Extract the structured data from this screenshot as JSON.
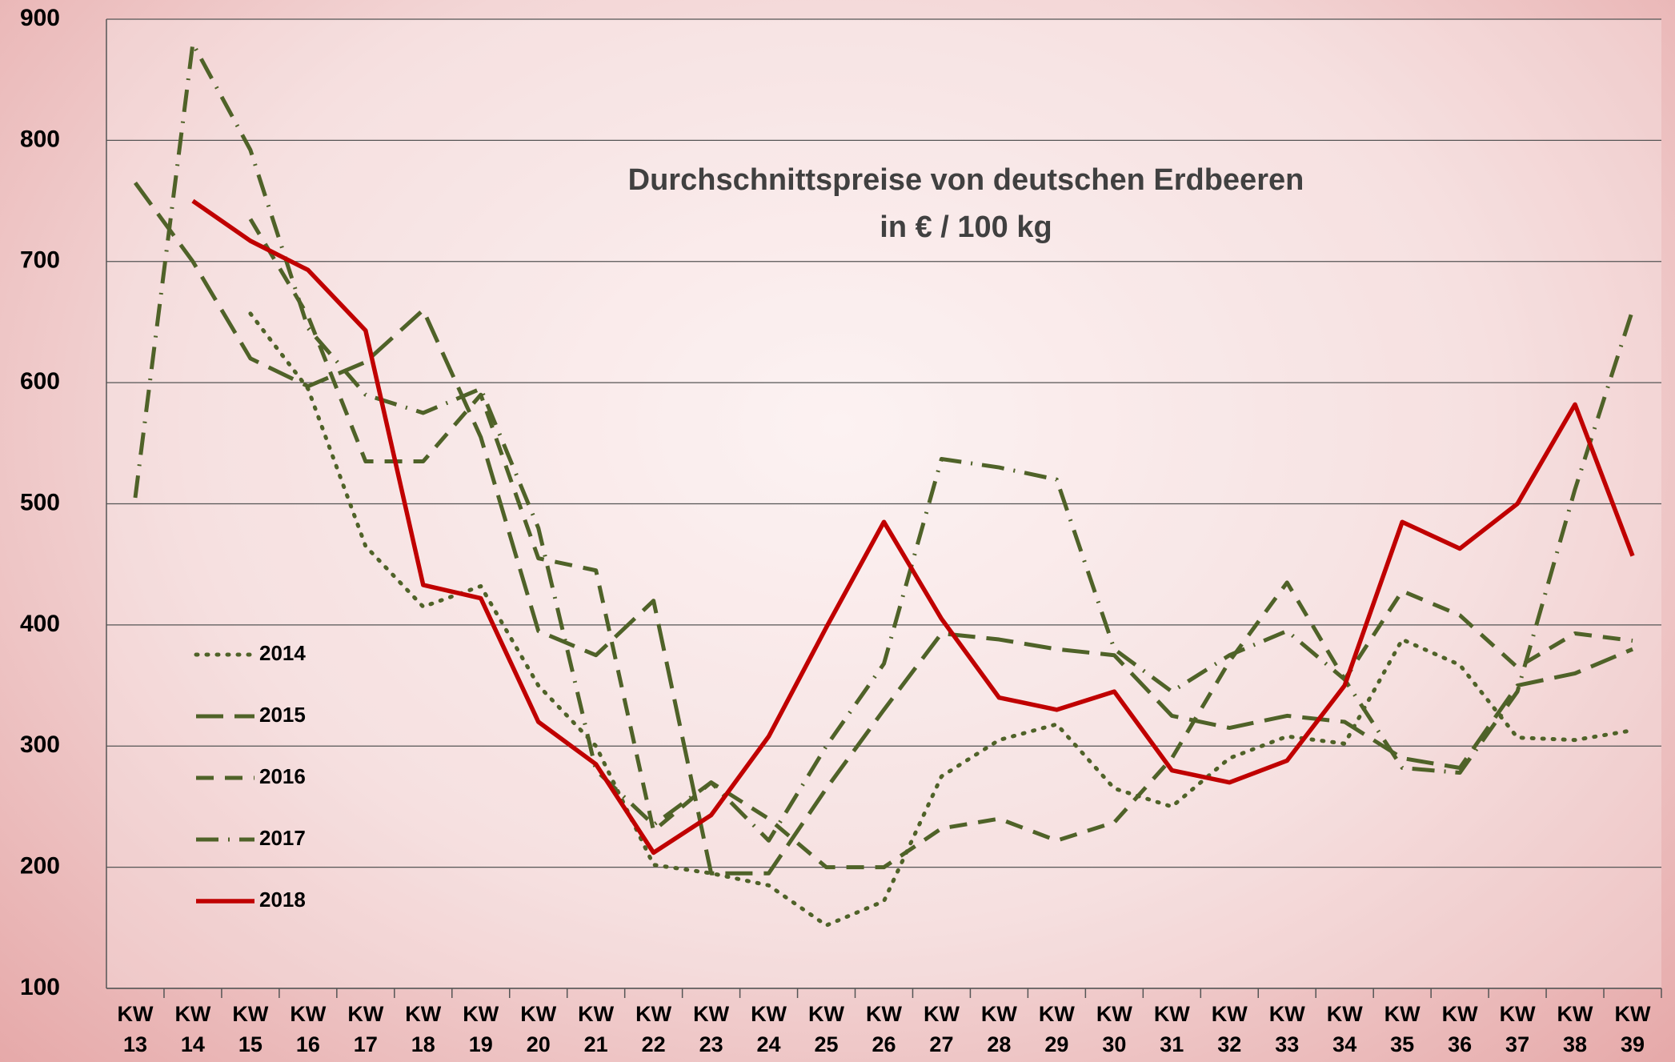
{
  "chart_data": {
    "type": "line",
    "title": "Durchschnittspreise von deutschen Erdbeeren",
    "subtitle": "in € / 100 kg",
    "categories": [
      "KW 13",
      "KW 14",
      "KW 15",
      "KW 16",
      "KW 17",
      "KW 18",
      "KW 19",
      "KW 20",
      "KW 21",
      "KW 22",
      "KW 23",
      "KW 24",
      "KW 25",
      "KW 26",
      "KW 27",
      "KW 28",
      "KW 29",
      "KW 30",
      "KW 31",
      "KW 32",
      "KW 33",
      "KW 34",
      "KW 35",
      "KW 36",
      "KW 37",
      "KW 38",
      "KW 39"
    ],
    "series": [
      {
        "name": "2014",
        "color": "#4f6228",
        "dash": "dotted",
        "values": [
          null,
          null,
          657,
          595,
          465,
          415,
          432,
          350,
          300,
          202,
          195,
          185,
          152,
          172,
          275,
          305,
          318,
          265,
          250,
          290,
          308,
          302,
          388,
          367,
          307,
          305,
          313
        ]
      },
      {
        "name": "2015",
        "color": "#4f6228",
        "dash": "long-dash",
        "values": [
          765,
          700,
          620,
          597,
          617,
          660,
          555,
          395,
          375,
          420,
          195,
          195,
          265,
          330,
          393,
          388,
          380,
          375,
          325,
          315,
          325,
          320,
          290,
          282,
          350,
          360,
          380
        ]
      },
      {
        "name": "2016",
        "color": "#4f6228",
        "dash": "dash",
        "values": [
          null,
          null,
          735,
          655,
          535,
          535,
          590,
          455,
          445,
          230,
          270,
          240,
          200,
          200,
          232,
          240,
          222,
          237,
          290,
          370,
          435,
          355,
          428,
          408,
          365,
          393,
          387
        ]
      },
      {
        "name": "2017",
        "color": "#4f6228",
        "dash": "dash-dot",
        "values": [
          505,
          880,
          792,
          645,
          590,
          575,
          595,
          480,
          280,
          235,
          270,
          222,
          300,
          368,
          537,
          530,
          520,
          380,
          345,
          375,
          395,
          355,
          282,
          278,
          345,
          512,
          660
        ]
      },
      {
        "name": "2018",
        "color": "#c00000",
        "dash": "solid",
        "values": [
          null,
          750,
          717,
          693,
          643,
          433,
          422,
          320,
          285,
          212,
          243,
          308,
          398,
          485,
          405,
          340,
          330,
          345,
          280,
          270,
          288,
          350,
          485,
          463,
          500,
          582,
          457
        ]
      }
    ],
    "ylim": [
      100,
      900
    ],
    "yticks": [
      100,
      200,
      300,
      400,
      500,
      600,
      700,
      800,
      900
    ],
    "grid": true
  }
}
